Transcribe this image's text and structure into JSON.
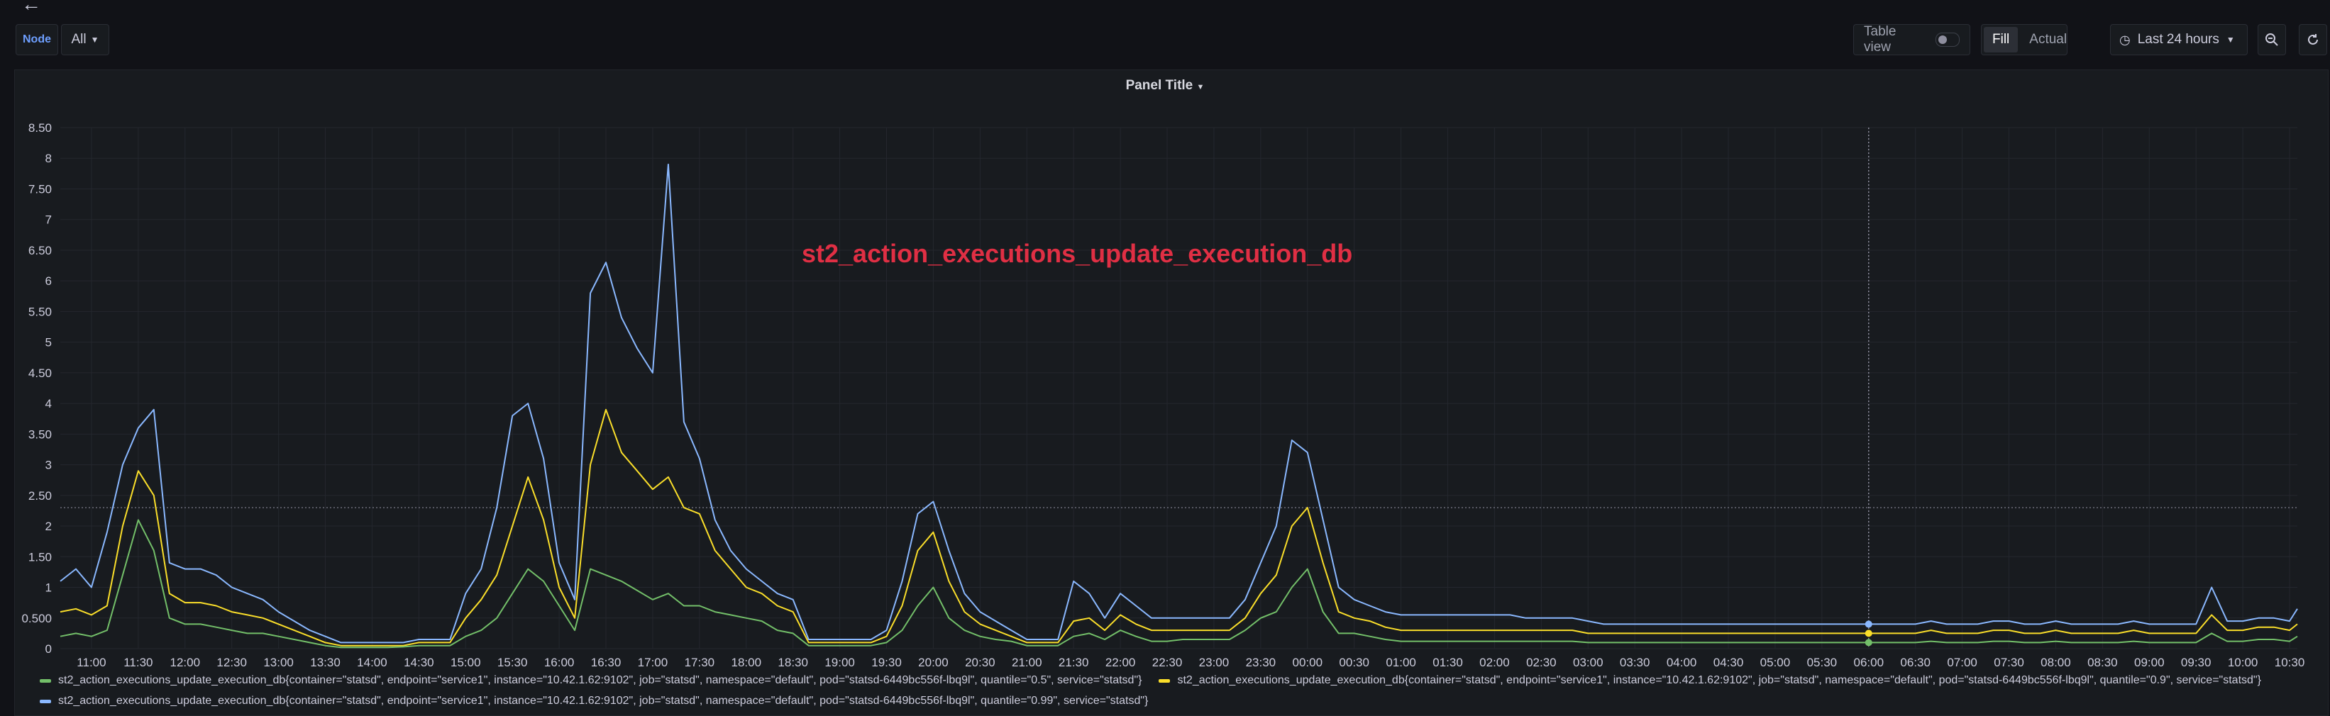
{
  "header": {
    "back_icon": "arrow-left-icon",
    "variable_label": "Node",
    "variable_value": "All",
    "table_view_label": "Table view",
    "fill_label": "Fill",
    "actual_label": "Actual",
    "time_range": "Last 24 hours",
    "icons": [
      "clock-icon",
      "chevron-down-icon",
      "zoom-out-icon",
      "refresh-icon"
    ]
  },
  "panel": {
    "title": "Panel Title",
    "annotation": "st2_action_executions_update_execution_db",
    "annotation_color": "#e02f44"
  },
  "chart_data": {
    "type": "line",
    "ylim": [
      0,
      8.5
    ],
    "y_ticks": [
      "0",
      "0.500",
      "1",
      "1.50",
      "2",
      "2.50",
      "3",
      "3.50",
      "4",
      "4.50",
      "5",
      "5.50",
      "6",
      "6.50",
      "7",
      "7.50",
      "8",
      "8.50"
    ],
    "x_ticks": [
      "11:00",
      "11:30",
      "12:00",
      "12:30",
      "13:00",
      "13:30",
      "14:00",
      "14:30",
      "15:00",
      "15:30",
      "16:00",
      "16:30",
      "17:00",
      "17:30",
      "18:00",
      "18:30",
      "19:00",
      "19:30",
      "20:00",
      "20:30",
      "21:00",
      "21:30",
      "22:00",
      "22:30",
      "23:00",
      "23:30",
      "00:00",
      "00:30",
      "01:00",
      "01:30",
      "02:00",
      "02:30",
      "03:00",
      "03:30",
      "04:00",
      "04:30",
      "05:00",
      "05:30",
      "06:00",
      "06:30",
      "07:00",
      "07:30",
      "08:00",
      "08:30",
      "09:00",
      "09:30",
      "10:00",
      "10:30"
    ],
    "x": [
      "10:40",
      "10:50",
      "11:00",
      "11:10",
      "11:20",
      "11:30",
      "11:40",
      "11:50",
      "12:00",
      "12:10",
      "12:20",
      "12:30",
      "12:40",
      "12:50",
      "13:00",
      "13:10",
      "13:20",
      "13:30",
      "13:40",
      "13:50",
      "14:00",
      "14:10",
      "14:20",
      "14:30",
      "14:40",
      "14:50",
      "15:00",
      "15:10",
      "15:20",
      "15:30",
      "15:40",
      "15:50",
      "16:00",
      "16:10",
      "16:20",
      "16:30",
      "16:40",
      "16:50",
      "17:00",
      "17:10",
      "17:20",
      "17:30",
      "17:40",
      "17:50",
      "18:00",
      "18:10",
      "18:20",
      "18:30",
      "18:40",
      "18:50",
      "19:00",
      "19:10",
      "19:20",
      "19:30",
      "19:40",
      "19:50",
      "20:00",
      "20:10",
      "20:20",
      "20:30",
      "20:40",
      "20:50",
      "21:00",
      "21:10",
      "21:20",
      "21:30",
      "21:40",
      "21:50",
      "22:00",
      "22:10",
      "22:20",
      "22:30",
      "22:40",
      "22:50",
      "23:00",
      "23:10",
      "23:20",
      "23:30",
      "23:40",
      "23:50",
      "00:00",
      "00:10",
      "00:20",
      "00:30",
      "00:40",
      "00:50",
      "01:00",
      "01:10",
      "01:20",
      "01:30",
      "01:40",
      "01:50",
      "02:00",
      "02:10",
      "02:20",
      "02:30",
      "02:40",
      "02:50",
      "03:00",
      "03:10",
      "03:20",
      "03:30",
      "03:40",
      "03:50",
      "04:00",
      "04:10",
      "04:20",
      "04:30",
      "04:40",
      "04:50",
      "05:00",
      "05:10",
      "05:20",
      "05:30",
      "05:40",
      "05:50",
      "06:00",
      "06:10",
      "06:20",
      "06:30",
      "06:40",
      "06:50",
      "07:00",
      "07:10",
      "07:20",
      "07:30",
      "07:40",
      "07:50",
      "08:00",
      "08:10",
      "08:20",
      "08:30",
      "08:40",
      "08:50",
      "09:00",
      "09:10",
      "09:20",
      "09:30",
      "09:40",
      "09:50",
      "10:00",
      "10:10",
      "10:20",
      "10:30",
      "10:35"
    ],
    "series": [
      {
        "name": "st2_action_executions_update_execution_db{container=\"statsd\", endpoint=\"service1\", instance=\"10.42.1.62:9102\", job=\"statsd\", namespace=\"default\", pod=\"statsd-6449bc556f-lbq9l\", quantile=\"0.5\", service=\"statsd\"}",
        "color": "#73bf69",
        "values": [
          0.2,
          0.25,
          0.2,
          0.3,
          1.2,
          2.1,
          1.6,
          0.5,
          0.4,
          0.4,
          0.35,
          0.3,
          0.25,
          0.25,
          0.2,
          0.15,
          0.1,
          0.05,
          0.02,
          0.02,
          0.02,
          0.02,
          0.03,
          0.05,
          0.05,
          0.05,
          0.2,
          0.3,
          0.5,
          0.9,
          1.3,
          1.1,
          0.7,
          0.3,
          1.3,
          1.2,
          1.1,
          0.95,
          0.8,
          0.9,
          0.7,
          0.7,
          0.6,
          0.55,
          0.5,
          0.45,
          0.3,
          0.25,
          0.05,
          0.05,
          0.05,
          0.05,
          0.05,
          0.1,
          0.3,
          0.7,
          1.0,
          0.5,
          0.3,
          0.2,
          0.15,
          0.12,
          0.05,
          0.05,
          0.05,
          0.2,
          0.25,
          0.15,
          0.3,
          0.2,
          0.12,
          0.12,
          0.15,
          0.15,
          0.15,
          0.15,
          0.3,
          0.5,
          0.6,
          1.0,
          1.3,
          0.6,
          0.25,
          0.25,
          0.2,
          0.15,
          0.12,
          0.12,
          0.12,
          0.12,
          0.12,
          0.12,
          0.12,
          0.12,
          0.12,
          0.12,
          0.12,
          0.12,
          0.1,
          0.1,
          0.1,
          0.1,
          0.1,
          0.1,
          0.1,
          0.1,
          0.1,
          0.1,
          0.1,
          0.1,
          0.1,
          0.1,
          0.1,
          0.1,
          0.1,
          0.1,
          0.1,
          0.1,
          0.1,
          0.1,
          0.12,
          0.1,
          0.1,
          0.1,
          0.12,
          0.12,
          0.1,
          0.1,
          0.12,
          0.1,
          0.1,
          0.1,
          0.1,
          0.12,
          0.1,
          0.1,
          0.1,
          0.1,
          0.25,
          0.12,
          0.12,
          0.15,
          0.15,
          0.12,
          0.2
        ]
      },
      {
        "name": "st2_action_executions_update_execution_db{container=\"statsd\", endpoint=\"service1\", instance=\"10.42.1.62:9102\", job=\"statsd\", namespace=\"default\", pod=\"statsd-6449bc556f-lbq9l\", quantile=\"0.9\", service=\"statsd\"}",
        "color": "#fade2a",
        "values": [
          0.6,
          0.65,
          0.55,
          0.7,
          2.0,
          2.9,
          2.5,
          0.9,
          0.75,
          0.75,
          0.7,
          0.6,
          0.55,
          0.5,
          0.4,
          0.3,
          0.2,
          0.1,
          0.05,
          0.05,
          0.05,
          0.05,
          0.05,
          0.1,
          0.1,
          0.1,
          0.5,
          0.8,
          1.2,
          2.0,
          2.8,
          2.1,
          1.0,
          0.5,
          3.0,
          3.9,
          3.2,
          2.9,
          2.6,
          2.8,
          2.3,
          2.2,
          1.6,
          1.3,
          1.0,
          0.9,
          0.7,
          0.6,
          0.1,
          0.1,
          0.1,
          0.1,
          0.1,
          0.2,
          0.7,
          1.6,
          1.9,
          1.1,
          0.6,
          0.4,
          0.3,
          0.2,
          0.1,
          0.1,
          0.1,
          0.45,
          0.5,
          0.3,
          0.55,
          0.4,
          0.3,
          0.3,
          0.3,
          0.3,
          0.3,
          0.3,
          0.5,
          0.9,
          1.2,
          2.0,
          2.3,
          1.4,
          0.6,
          0.5,
          0.45,
          0.35,
          0.3,
          0.3,
          0.3,
          0.3,
          0.3,
          0.3,
          0.3,
          0.3,
          0.3,
          0.3,
          0.3,
          0.3,
          0.25,
          0.25,
          0.25,
          0.25,
          0.25,
          0.25,
          0.25,
          0.25,
          0.25,
          0.25,
          0.25,
          0.25,
          0.25,
          0.25,
          0.25,
          0.25,
          0.25,
          0.25,
          0.25,
          0.25,
          0.25,
          0.25,
          0.3,
          0.25,
          0.25,
          0.25,
          0.3,
          0.3,
          0.25,
          0.25,
          0.3,
          0.25,
          0.25,
          0.25,
          0.25,
          0.3,
          0.25,
          0.25,
          0.25,
          0.25,
          0.55,
          0.3,
          0.3,
          0.35,
          0.35,
          0.3,
          0.4
        ]
      },
      {
        "name": "st2_action_executions_update_execution_db{container=\"statsd\", endpoint=\"service1\", instance=\"10.42.1.62:9102\", job=\"statsd\", namespace=\"default\", pod=\"statsd-6449bc556f-lbq9l\", quantile=\"0.99\", service=\"statsd\"}",
        "color": "#8ab8ff",
        "values": [
          1.1,
          1.3,
          1.0,
          1.9,
          3.0,
          3.6,
          3.9,
          1.4,
          1.3,
          1.3,
          1.2,
          1.0,
          0.9,
          0.8,
          0.6,
          0.45,
          0.3,
          0.2,
          0.1,
          0.1,
          0.1,
          0.1,
          0.1,
          0.15,
          0.15,
          0.15,
          0.9,
          1.3,
          2.3,
          3.8,
          4.0,
          3.1,
          1.4,
          0.8,
          5.8,
          6.3,
          5.4,
          4.9,
          4.5,
          7.9,
          3.7,
          3.1,
          2.1,
          1.6,
          1.3,
          1.1,
          0.9,
          0.8,
          0.15,
          0.15,
          0.15,
          0.15,
          0.15,
          0.3,
          1.1,
          2.2,
          2.4,
          1.6,
          0.9,
          0.6,
          0.45,
          0.3,
          0.15,
          0.15,
          0.15,
          1.1,
          0.9,
          0.5,
          0.9,
          0.7,
          0.5,
          0.5,
          0.5,
          0.5,
          0.5,
          0.5,
          0.8,
          1.4,
          2.0,
          3.4,
          3.2,
          2.1,
          1.0,
          0.8,
          0.7,
          0.6,
          0.55,
          0.55,
          0.55,
          0.55,
          0.55,
          0.55,
          0.55,
          0.55,
          0.5,
          0.5,
          0.5,
          0.5,
          0.45,
          0.4,
          0.4,
          0.4,
          0.4,
          0.4,
          0.4,
          0.4,
          0.4,
          0.4,
          0.4,
          0.4,
          0.4,
          0.4,
          0.4,
          0.4,
          0.4,
          0.4,
          0.4,
          0.4,
          0.4,
          0.4,
          0.45,
          0.4,
          0.4,
          0.4,
          0.45,
          0.45,
          0.4,
          0.4,
          0.45,
          0.4,
          0.4,
          0.4,
          0.4,
          0.45,
          0.4,
          0.4,
          0.4,
          0.4,
          1.0,
          0.45,
          0.45,
          0.5,
          0.5,
          0.45,
          0.65
        ]
      }
    ],
    "threshold": 2.3,
    "hover_time": "06:00",
    "grid": true,
    "legend": "bottom"
  }
}
